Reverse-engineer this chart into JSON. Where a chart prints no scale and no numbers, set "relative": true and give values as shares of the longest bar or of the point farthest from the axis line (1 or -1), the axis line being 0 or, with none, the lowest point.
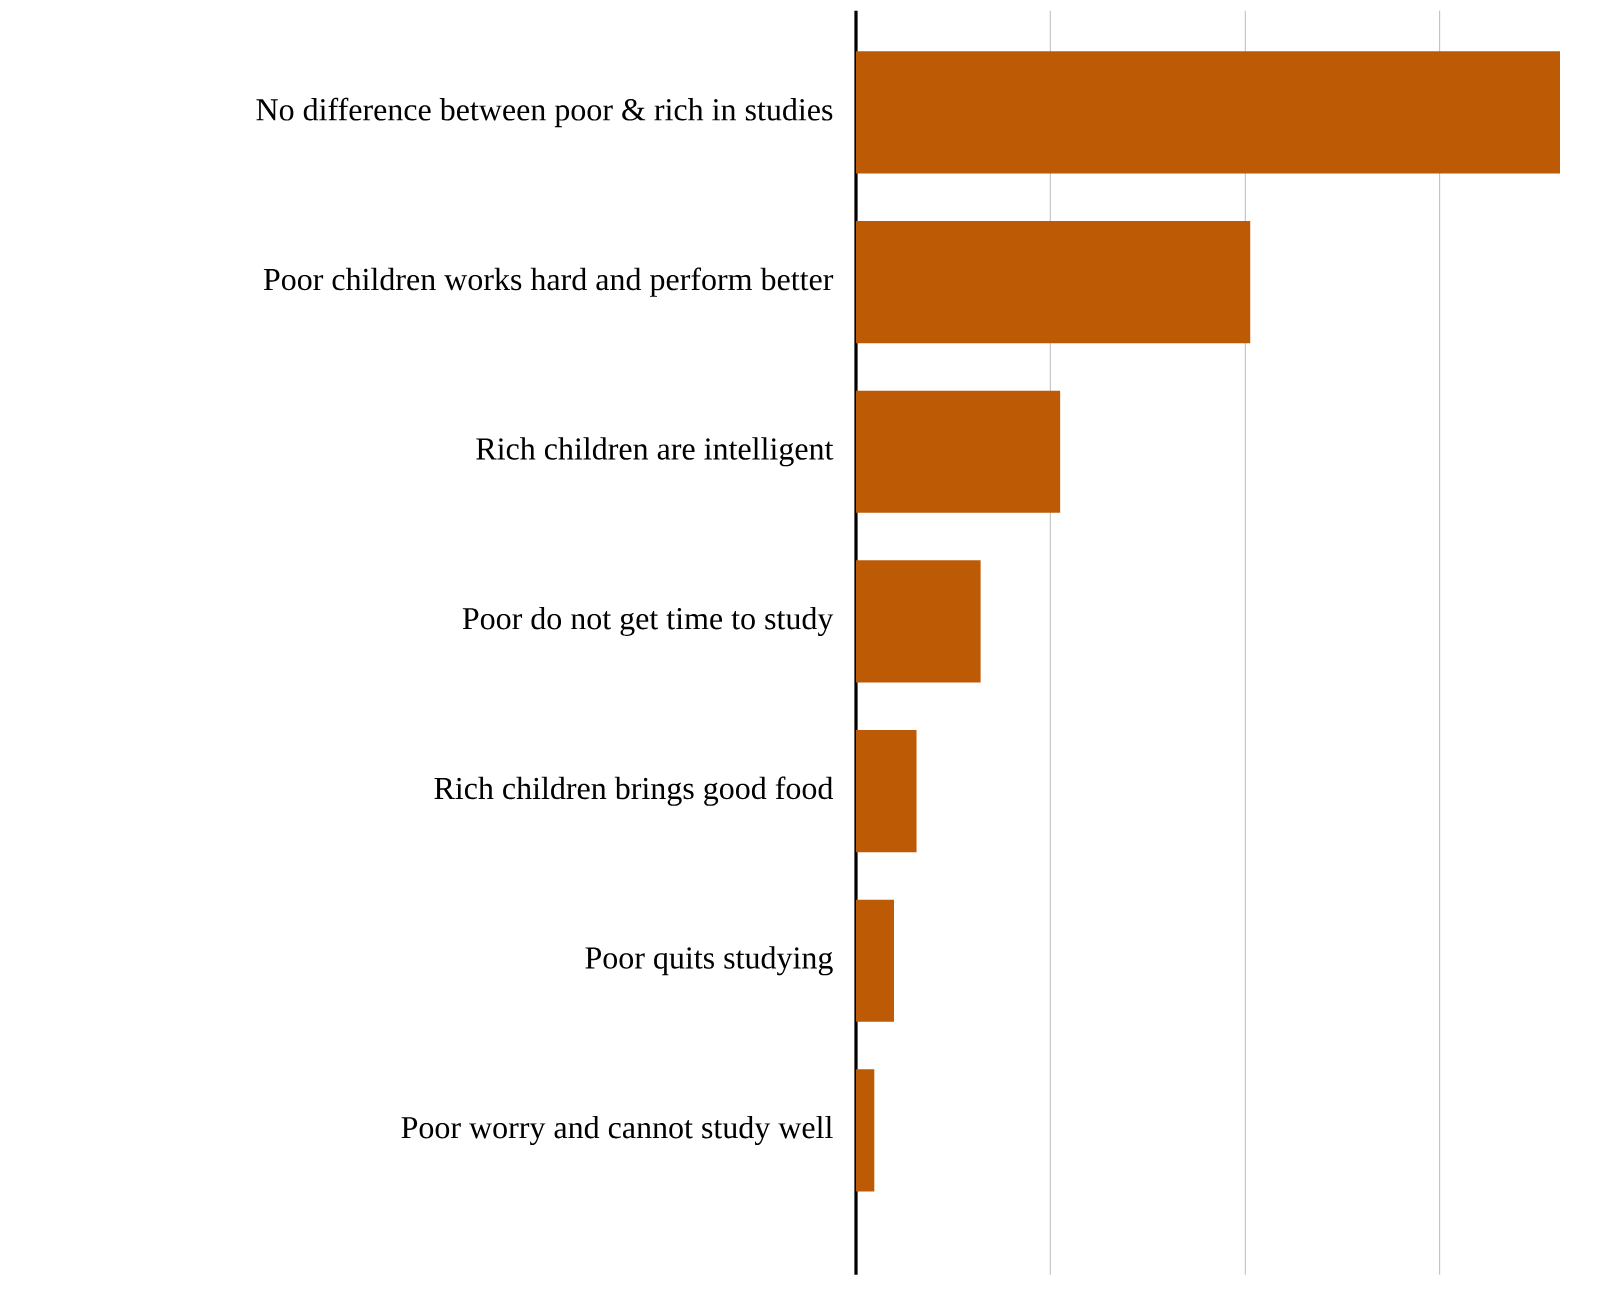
{
  "chart_data": {
    "type": "bar",
    "orientation": "horizontal",
    "relative": true,
    "grid": "x",
    "color": "#bc5a06",
    "categories": [
      "No difference between poor & rich in studies",
      "Poor children works hard and perform better",
      "Rich children are intelligent",
      "Poor do not get time to study",
      "Rich children brings good food",
      "Poor quits studying",
      "Poor worry and cannot study well"
    ],
    "values": [
      1,
      0.56,
      0.29,
      0.177,
      0.086,
      0.054,
      0.026
    ]
  }
}
